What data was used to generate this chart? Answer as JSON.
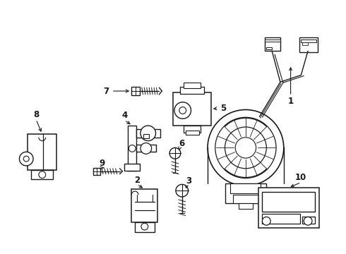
{
  "background_color": "#ffffff",
  "line_color": "#1a1a1a",
  "line_width": 1.0,
  "figure_width": 4.9,
  "figure_height": 3.6,
  "dpi": 100,
  "label_fontsize": 8.5,
  "label_fontweight": "bold"
}
